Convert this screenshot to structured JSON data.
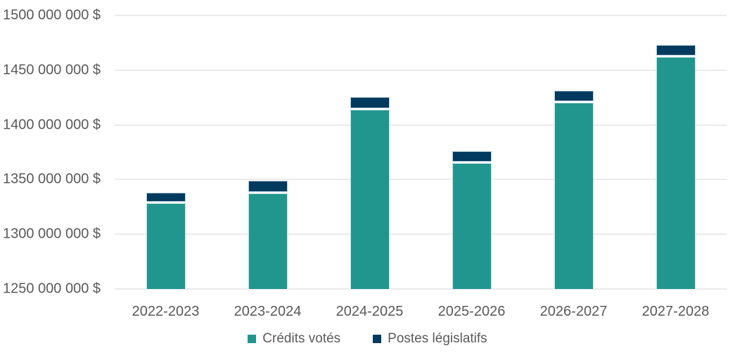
{
  "chart_data": {
    "type": "bar",
    "stacked": true,
    "title": "",
    "xlabel": "",
    "ylabel": "",
    "grid": true,
    "legend_position": "bottom",
    "categories": [
      "2022-2023",
      "2023-2024",
      "2024-2025",
      "2025-2026",
      "2026-2027",
      "2027-2028"
    ],
    "series": [
      {
        "name": "Crédits votés",
        "color": "#21968F",
        "values": [
          1328500000,
          1337500000,
          1414000000,
          1365000000,
          1420000000,
          1462000000
        ]
      },
      {
        "name": "Postes législatifs",
        "color": "#003A5E",
        "values": [
          8500000,
          10500000,
          10000000,
          10000000,
          10000000,
          10000000
        ]
      }
    ],
    "stacked_totals": [
      1337000000,
      1348000000,
      1424000000,
      1375000000,
      1430000000,
      1472000000
    ],
    "ylim": [
      1250000000,
      1500000000
    ],
    "ytick_step": 50000000,
    "yticks": [
      1250000000,
      1300000000,
      1350000000,
      1400000000,
      1450000000,
      1500000000
    ],
    "ytick_labels": [
      "1250 000 000 $",
      "1300 000 000 $",
      "1350 000 000 $",
      "1400 000 000 $",
      "1450 000 000 $",
      "1500 000 000 $"
    ]
  },
  "colors": {
    "background": "#FFFFFF",
    "gridline": "#EBEBEB",
    "axis_text": "#595959",
    "credits_votes_fill": "#21968F",
    "postes_legislatifs_fill": "#003A5E"
  }
}
